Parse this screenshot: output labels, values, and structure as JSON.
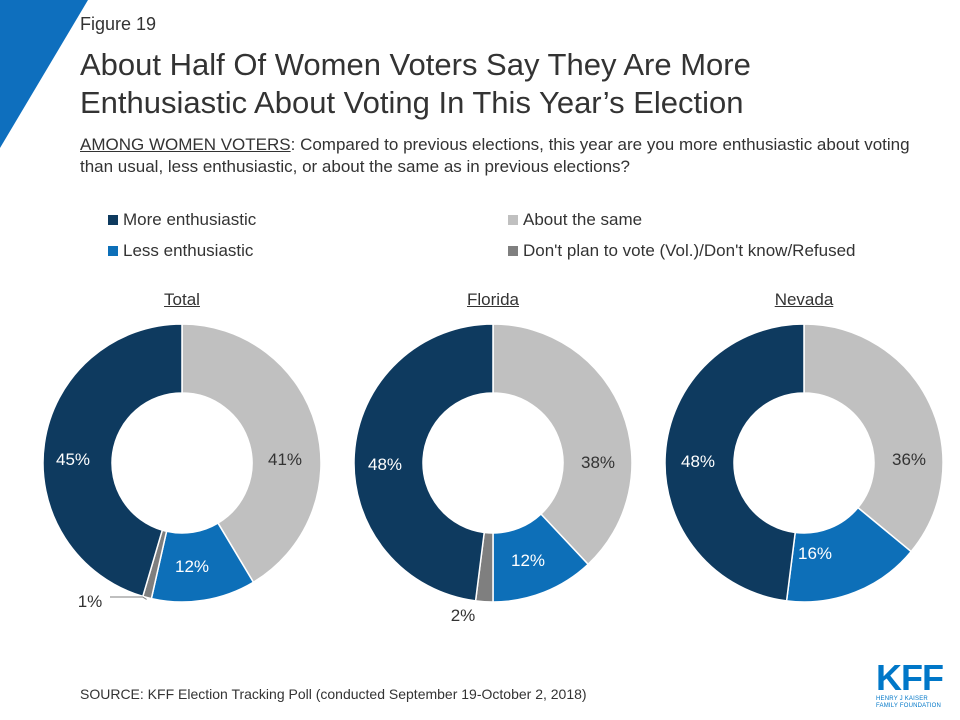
{
  "header": {
    "figure_label": "Figure 19",
    "title": "About Half Of Women Voters Say They Are More Enthusiastic About Voting In This Year’s Election",
    "question_lead": "AMONG WOMEN VOTERS",
    "question_body": ": Compared to previous elections, this year are you more enthusiastic about voting than usual, less enthusiastic, or about the same as in previous elections?"
  },
  "colors": {
    "more": "#0e3a5f",
    "same": "#c0c0c0",
    "less": "#0d6fb8",
    "dont": "#7f7f7f",
    "accent_corner": "#0e6fbe"
  },
  "legend": [
    {
      "label": "More enthusiastic",
      "color": "#0e3a5f"
    },
    {
      "label": "About the same",
      "color": "#c0c0c0"
    },
    {
      "label": "Less enthusiastic",
      "color": "#0d6fb8"
    },
    {
      "label": "Don't plan to vote (Vol.)/Don't know/Refused",
      "color": "#7f7f7f"
    }
  ],
  "chart_data": [
    {
      "type": "pie",
      "donut": true,
      "title": "Total",
      "categories": [
        "More enthusiastic",
        "About the same",
        "Less enthusiastic",
        "Don't plan to vote (Vol.)/Don't know/Refused"
      ],
      "values": [
        45,
        41,
        12,
        1
      ],
      "labels": [
        "45%",
        "41%",
        "12%",
        "1%"
      ]
    },
    {
      "type": "pie",
      "donut": true,
      "title": "Florida",
      "categories": [
        "More enthusiastic",
        "About the same",
        "Less enthusiastic",
        "Don't plan to vote (Vol.)/Don't know/Refused"
      ],
      "values": [
        48,
        38,
        12,
        2
      ],
      "labels": [
        "48%",
        "38%",
        "12%",
        "2%"
      ]
    },
    {
      "type": "pie",
      "donut": true,
      "title": "Nevada",
      "categories": [
        "More enthusiastic",
        "About the same",
        "Less enthusiastic"
      ],
      "values": [
        48,
        36,
        16
      ],
      "labels": [
        "48%",
        "36%",
        "16%"
      ]
    }
  ],
  "footer": {
    "source": "SOURCE: KFF Election Tracking Poll (conducted September 19-October 2, 2018)",
    "logo_text": "KFF",
    "logo_subtext": "HENRY J KAISER FAMILY FOUNDATION"
  }
}
